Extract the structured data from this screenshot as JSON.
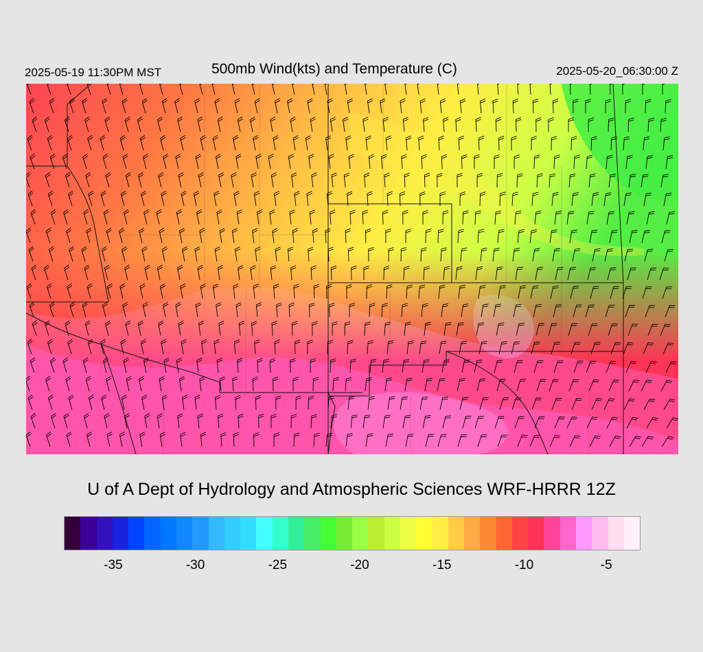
{
  "header": {
    "local_time": "2025-05-19 11:30PM MST",
    "title": "500mb Wind(kts) and Temperature (C)",
    "valid_time": "2025-05-20_06:30:00 Z"
  },
  "footer": {
    "credit": "U of A Dept of Hydrology and Atmospheric Sciences WRF-HRRR 12Z"
  },
  "colorbar": {
    "colors": [
      "#33003a",
      "#3d0099",
      "#3311bb",
      "#1a22dd",
      "#0044ff",
      "#0066ff",
      "#0077ff",
      "#1188ff",
      "#2299ff",
      "#33bbff",
      "#33ccff",
      "#33ddff",
      "#44ffff",
      "#33ffcc",
      "#33ee99",
      "#44ee66",
      "#44ff33",
      "#77ee33",
      "#99ff44",
      "#bbee33",
      "#ccff44",
      "#eeff44",
      "#ffff33",
      "#ffee44",
      "#ffcc44",
      "#ffaa44",
      "#ff8833",
      "#ff6633",
      "#ff4444",
      "#ff3355",
      "#ff4499",
      "#ff66cc",
      "#ff99ff",
      "#ffbbee",
      "#ffddee",
      "#fff0f8"
    ],
    "tick_labels": [
      "-35",
      "-30",
      "-25",
      "-20",
      "-15",
      "-10",
      "-5"
    ],
    "tick_values": [
      -35,
      -30,
      -25,
      -20,
      -15,
      -10,
      -5
    ],
    "range": [
      -37,
      -2
    ]
  },
  "map": {
    "field": "500mb temperature (C) with wind barbs (kts)",
    "colors": {
      "pink": "#ff55aa",
      "light_pink": "#ff77cc",
      "red": "#ff3355",
      "orange": "#ff8844",
      "gold": "#ffbb44",
      "yellow": "#ffee44",
      "lime": "#ccff44",
      "green": "#44ee44",
      "borders": "#111111",
      "barbs": "#000000"
    }
  }
}
